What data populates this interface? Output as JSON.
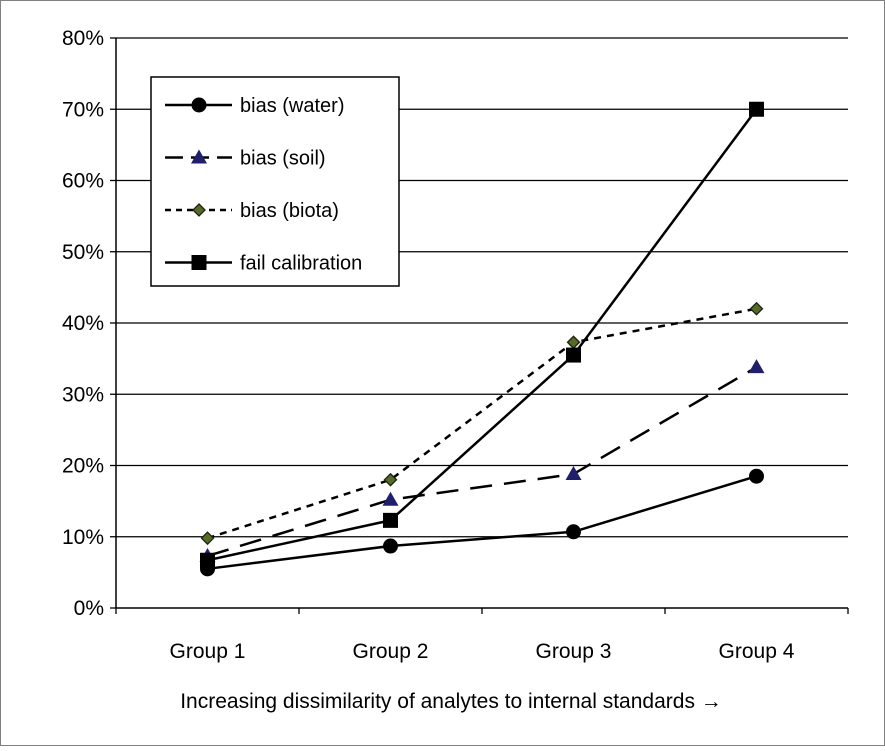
{
  "chart_data": {
    "type": "line",
    "categories": [
      "Group 1",
      "Group 2",
      "Group 3",
      "Group 4"
    ],
    "xlabel": "Increasing dissimilarity of analytes to internal standards →",
    "ylabel": "",
    "ylim": [
      0,
      80
    ],
    "y_ticks": [
      "0%",
      "10%",
      "20%",
      "30%",
      "40%",
      "50%",
      "60%",
      "70%",
      "80%"
    ],
    "grid": true,
    "legend_position": "top-left",
    "series": [
      {
        "name": "bias (water)",
        "values": [
          5.5,
          8.7,
          10.7,
          18.5
        ],
        "marker": "circle",
        "line": "solid",
        "color": "#000000"
      },
      {
        "name": "bias (soil)",
        "values": [
          7.3,
          15.2,
          18.8,
          33.8
        ],
        "marker": "triangle",
        "line": "long-dash",
        "color": "#1f1f6b"
      },
      {
        "name": "bias (biota)",
        "values": [
          9.8,
          18.0,
          37.3,
          42.0
        ],
        "marker": "diamond",
        "line": "short-dash",
        "color": "#3a4a1a"
      },
      {
        "name": "fail calibration",
        "values": [
          6.7,
          12.3,
          35.5,
          70.0
        ],
        "marker": "square",
        "line": "solid",
        "color": "#000000"
      }
    ]
  }
}
